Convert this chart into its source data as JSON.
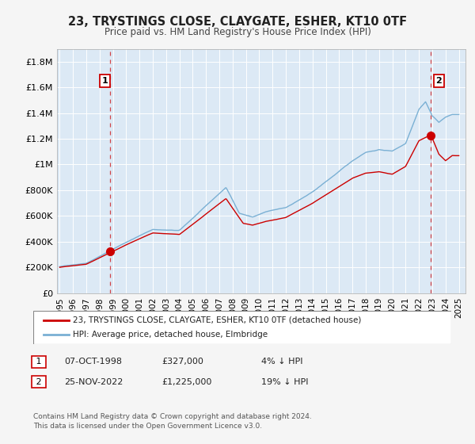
{
  "title": "23, TRYSTINGS CLOSE, CLAYGATE, ESHER, KT10 0TF",
  "subtitle": "Price paid vs. HM Land Registry's House Price Index (HPI)",
  "ylabel_ticks": [
    "£0",
    "£200K",
    "£400K",
    "£600K",
    "£800K",
    "£1M",
    "£1.2M",
    "£1.4M",
    "£1.6M",
    "£1.8M"
  ],
  "ytick_values": [
    0,
    200000,
    400000,
    600000,
    800000,
    1000000,
    1200000,
    1400000,
    1600000,
    1800000
  ],
  "ylim": [
    0,
    1900000
  ],
  "xlim_start": 1994.8,
  "xlim_end": 2025.5,
  "xtick_years": [
    1995,
    1996,
    1997,
    1998,
    1999,
    2000,
    2001,
    2002,
    2003,
    2004,
    2005,
    2006,
    2007,
    2008,
    2009,
    2010,
    2011,
    2012,
    2013,
    2014,
    2015,
    2016,
    2017,
    2018,
    2019,
    2020,
    2021,
    2022,
    2023,
    2024,
    2025
  ],
  "sale1_x": 1998.8,
  "sale1_y": 327000,
  "sale1_label": "1",
  "sale1_date": "07-OCT-1998",
  "sale1_price": "£327,000",
  "sale1_hpi": "4% ↓ HPI",
  "sale2_x": 2022.9,
  "sale2_y": 1225000,
  "sale2_label": "2",
  "sale2_date": "25-NOV-2022",
  "sale2_price": "£1,225,000",
  "sale2_hpi": "19% ↓ HPI",
  "legend_line1": "23, TRYSTINGS CLOSE, CLAYGATE, ESHER, KT10 0TF (detached house)",
  "legend_line2": "HPI: Average price, detached house, Elmbridge",
  "footer1": "Contains HM Land Registry data © Crown copyright and database right 2024.",
  "footer2": "This data is licensed under the Open Government Licence v3.0.",
  "red_color": "#cc0000",
  "blue_color": "#7ab0d4",
  "plot_bg_color": "#dce9f5",
  "bg_color": "#f5f5f5",
  "grid_color": "#ffffff"
}
